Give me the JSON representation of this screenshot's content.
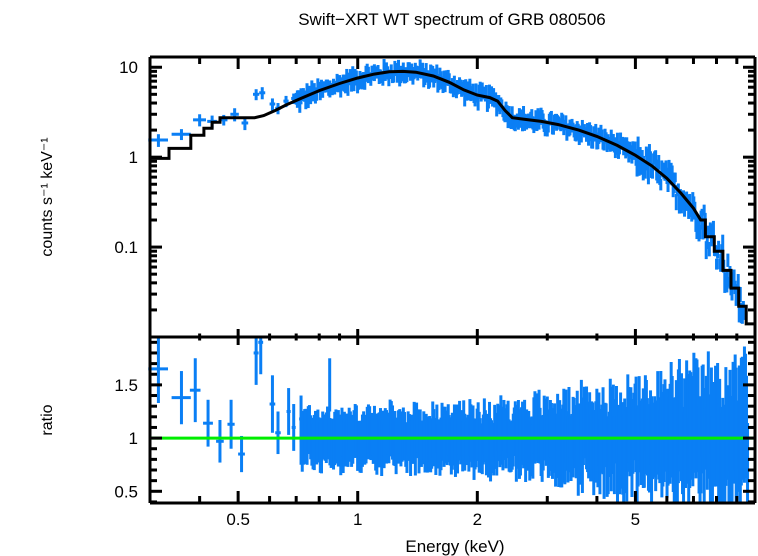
{
  "chart_data": [
    {
      "panel": "spectrum",
      "type": "scatter",
      "title": "Swift−XRT WT spectrum of GRB 080506",
      "xlabel": "Energy (keV)",
      "ylabel": "counts s⁻¹ keV⁻¹",
      "xscale": "log",
      "yscale": "log",
      "xlim": [
        0.3,
        10
      ],
      "ylim": [
        0.01,
        13
      ],
      "yticks": [
        {
          "v": 0.1,
          "label": "0.1"
        },
        {
          "v": 1,
          "label": "1"
        },
        {
          "v": 10,
          "label": "10"
        }
      ],
      "colors": {
        "data": "#0a7ff5",
        "model": "#000000"
      },
      "series": [
        {
          "name": "data",
          "points": [
            {
              "x": 0.315,
              "xerr": 0.018,
              "y": 1.55,
              "yerr": 0.25
            },
            {
              "x": 0.36,
              "xerr": 0.02,
              "y": 1.8,
              "yerr": 0.25
            },
            {
              "x": 0.4,
              "xerr": 0.015,
              "y": 2.6,
              "yerr": 0.4
            },
            {
              "x": 0.43,
              "xerr": 0.012,
              "y": 2.5,
              "yerr": 0.4
            },
            {
              "x": 0.46,
              "xerr": 0.01,
              "y": 2.6,
              "yerr": 0.35
            },
            {
              "x": 0.49,
              "xerr": 0.012,
              "y": 3.0,
              "yerr": 0.5
            },
            {
              "x": 0.52,
              "xerr": 0.01,
              "y": 2.4,
              "yerr": 0.4
            },
            {
              "x": 0.555,
              "xerr": 0.01,
              "y": 5.0,
              "yerr": 0.7
            },
            {
              "x": 0.575,
              "xerr": 0.01,
              "y": 5.2,
              "yerr": 0.8
            },
            {
              "x": 0.61,
              "xerr": 0.01,
              "y": 3.9,
              "yerr": 0.6
            },
            {
              "x": 0.63,
              "xerr": 0.01,
              "y": 3.5,
              "yerr": 0.5
            },
            {
              "x": 0.66,
              "xerr": 0.01,
              "y": 4.2,
              "yerr": 0.6
            },
            {
              "x": 0.69,
              "xerr": 0.01,
              "y": 4.5,
              "yerr": 0.6
            }
          ],
          "dense_region": {
            "x_range": [
              0.7,
              9.4
            ],
            "follows": "model",
            "scatter_dex": 0.08
          }
        },
        {
          "name": "model",
          "type": "step",
          "points": [
            [
              0.3,
              0.97
            ],
            [
              0.335,
              0.97
            ],
            [
              0.335,
              1.25
            ],
            [
              0.38,
              1.25
            ],
            [
              0.38,
              1.75
            ],
            [
              0.41,
              1.75
            ],
            [
              0.41,
              2.1
            ],
            [
              0.43,
              2.1
            ],
            [
              0.43,
              2.45
            ],
            [
              0.45,
              2.45
            ],
            [
              0.45,
              2.75
            ],
            [
              0.5,
              2.75
            ],
            [
              0.55,
              2.75
            ],
            [
              0.58,
              2.9
            ],
            [
              0.62,
              3.3
            ],
            [
              0.66,
              3.8
            ],
            [
              0.72,
              4.5
            ],
            [
              0.8,
              5.5
            ],
            [
              0.9,
              6.6
            ],
            [
              1.0,
              7.6
            ],
            [
              1.1,
              8.4
            ],
            [
              1.2,
              8.9
            ],
            [
              1.3,
              9.0
            ],
            [
              1.4,
              8.8
            ],
            [
              1.55,
              8.0
            ],
            [
              1.7,
              6.8
            ],
            [
              1.85,
              5.6
            ],
            [
              2.0,
              4.9
            ],
            [
              2.15,
              4.6
            ],
            [
              2.25,
              4.2
            ],
            [
              2.35,
              3.3
            ],
            [
              2.45,
              2.75
            ],
            [
              2.7,
              2.6
            ],
            [
              2.9,
              2.5
            ],
            [
              3.2,
              2.3
            ],
            [
              3.6,
              2.0
            ],
            [
              4.0,
              1.7
            ],
            [
              4.5,
              1.35
            ],
            [
              5.0,
              1.05
            ],
            [
              5.5,
              0.8
            ],
            [
              6.0,
              0.58
            ],
            [
              6.5,
              0.4
            ],
            [
              7.0,
              0.27
            ],
            [
              7.3,
              0.2
            ],
            [
              7.5,
              0.2
            ],
            [
              7.5,
              0.13
            ],
            [
              7.9,
              0.13
            ],
            [
              7.9,
              0.09
            ],
            [
              8.3,
              0.09
            ],
            [
              8.3,
              0.055
            ],
            [
              8.7,
              0.055
            ],
            [
              8.7,
              0.035
            ],
            [
              9.1,
              0.035
            ],
            [
              9.1,
              0.022
            ],
            [
              9.5,
              0.022
            ],
            [
              9.5,
              0.014
            ],
            [
              10.0,
              0.014
            ]
          ]
        }
      ]
    },
    {
      "panel": "ratio",
      "type": "scatter",
      "xlabel": "Energy (keV)",
      "ylabel": "ratio",
      "xscale": "log",
      "xlim": [
        0.3,
        10
      ],
      "ylim": [
        0.39,
        1.95
      ],
      "xticks": [
        {
          "v": 0.5,
          "label": "0.5"
        },
        {
          "v": 1,
          "label": "1"
        },
        {
          "v": 2,
          "label": "2"
        },
        {
          "v": 5,
          "label": "5"
        }
      ],
      "yticks": [
        {
          "v": 0.5,
          "label": "0.5"
        },
        {
          "v": 1,
          "label": "1"
        },
        {
          "v": 1.5,
          "label": "1.5"
        }
      ],
      "reference_line": {
        "y": 1,
        "color": "#00ee00"
      },
      "colors": {
        "data": "#0a7ff5"
      },
      "series": [
        {
          "name": "ratio",
          "points": [
            {
              "x": 0.315,
              "xerr": 0.018,
              "y": 1.65,
              "yerr": 0.32
            },
            {
              "x": 0.36,
              "xerr": 0.02,
              "y": 1.38,
              "yerr": 0.25
            },
            {
              "x": 0.39,
              "xerr": 0.012,
              "y": 1.45,
              "yerr": 0.3
            },
            {
              "x": 0.42,
              "xerr": 0.012,
              "y": 1.14,
              "yerr": 0.22
            },
            {
              "x": 0.45,
              "xerr": 0.01,
              "y": 0.97,
              "yerr": 0.2
            },
            {
              "x": 0.48,
              "xerr": 0.01,
              "y": 1.13,
              "yerr": 0.23
            },
            {
              "x": 0.51,
              "xerr": 0.01,
              "y": 0.85,
              "yerr": 0.17
            },
            {
              "x": 0.555,
              "xerr": 0.008,
              "y": 1.8,
              "yerr": 0.3
            },
            {
              "x": 0.57,
              "xerr": 0.008,
              "y": 1.9,
              "yerr": 0.3
            },
            {
              "x": 0.61,
              "xerr": 0.01,
              "y": 1.32,
              "yerr": 0.27
            },
            {
              "x": 0.63,
              "xerr": 0.01,
              "y": 1.05,
              "yerr": 0.2
            },
            {
              "x": 0.67,
              "xerr": 0.008,
              "y": 1.25,
              "yerr": 0.22
            },
            {
              "x": 0.69,
              "xerr": 0.008,
              "y": 1.1,
              "yerr": 0.22
            },
            {
              "x": 0.72,
              "xerr": 0.008,
              "y": 1.18,
              "yerr": 0.22
            },
            {
              "x": 0.85,
              "xerr": 0.006,
              "y": 1.5,
              "yerr": 0.25
            }
          ],
          "dense_region": {
            "x_range": [
              0.72,
              9.6
            ],
            "center": 1.0,
            "spread_low_E": 0.12,
            "spread_high_E": 0.4
          }
        }
      ]
    }
  ]
}
